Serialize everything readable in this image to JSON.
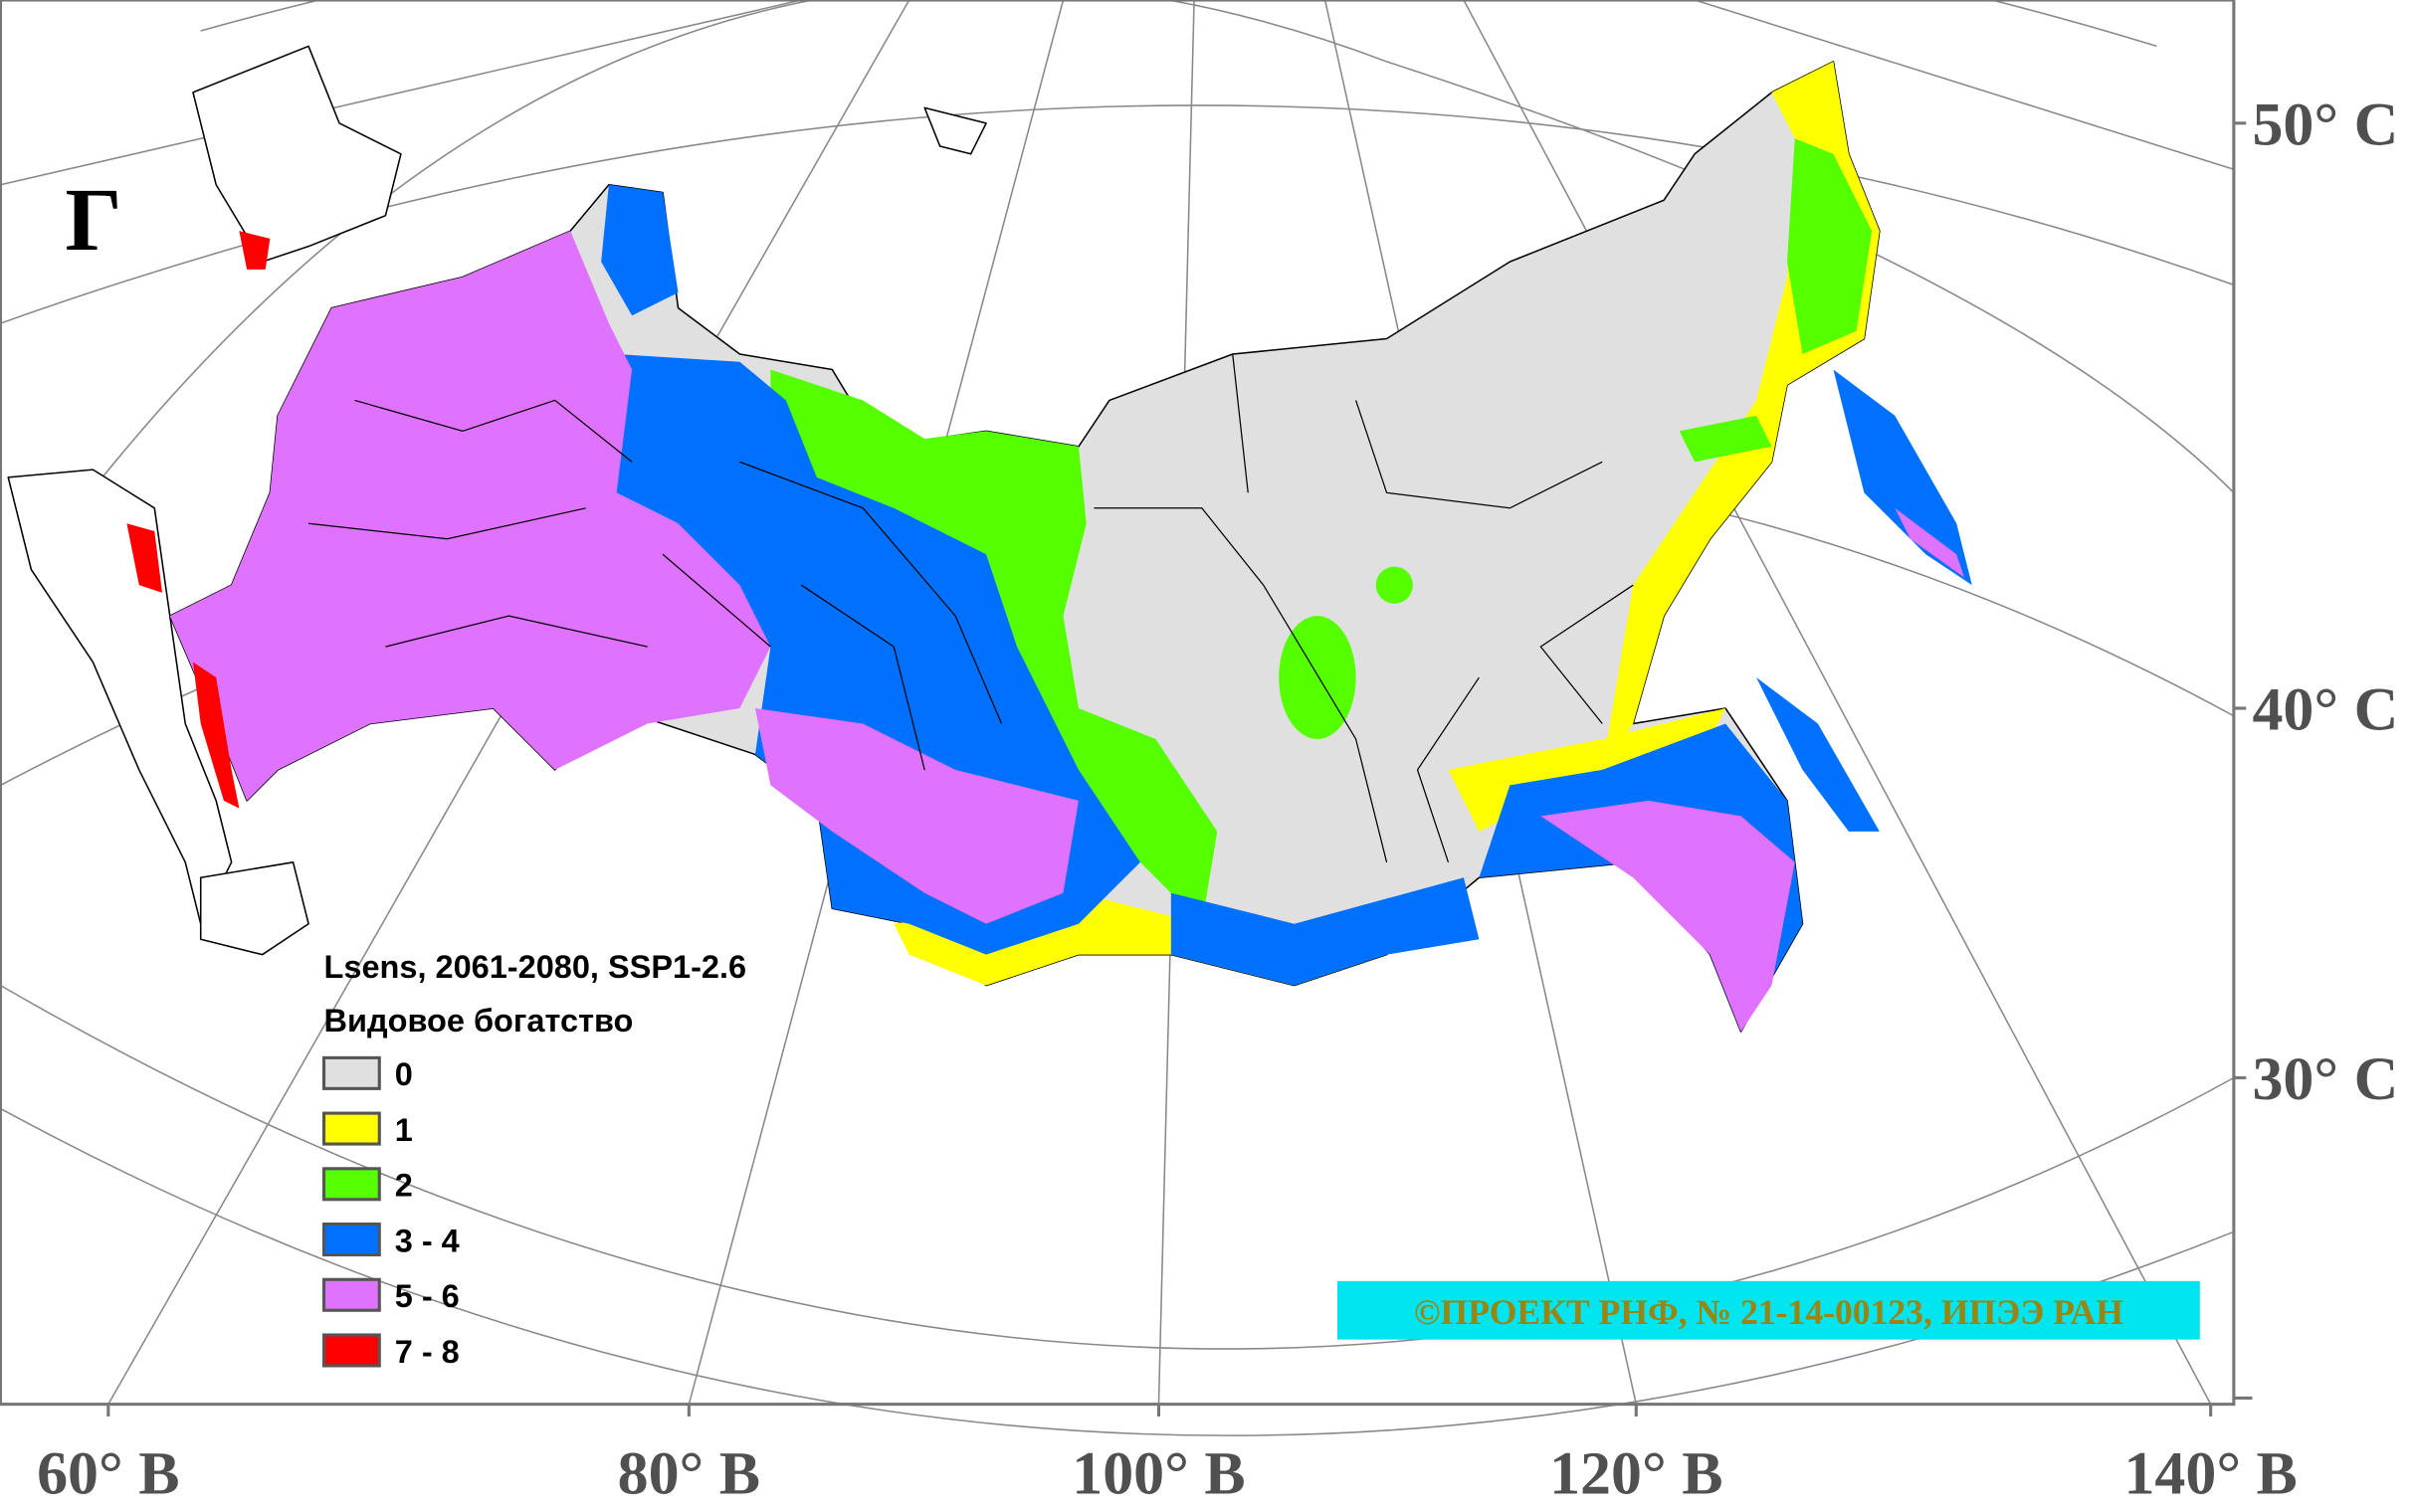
{
  "panel_label": "Г",
  "legend": {
    "title": "Lsens, 2061-2080, SSP1-2.6",
    "subtitle": "Видовое богатство",
    "items": [
      {
        "label": "0",
        "color": "#e0e0e0"
      },
      {
        "label": "1",
        "color": "#ffff00"
      },
      {
        "label": "2",
        "color": "#55ff00"
      },
      {
        "label": "3 - 4",
        "color": "#0070ff"
      },
      {
        "label": "5 - 6",
        "color": "#df73ff"
      },
      {
        "label": "7 - 8",
        "color": "#ff0000"
      }
    ]
  },
  "longitude_labels": [
    "60° В",
    "80° В",
    "100° В",
    "120° В",
    "140° В"
  ],
  "latitude_labels": [
    "50° С",
    "40° С",
    "30° С"
  ],
  "credit": "©ПРОЕКТ РНФ, № 21-14-00123, ИПЭЭ РАН"
}
